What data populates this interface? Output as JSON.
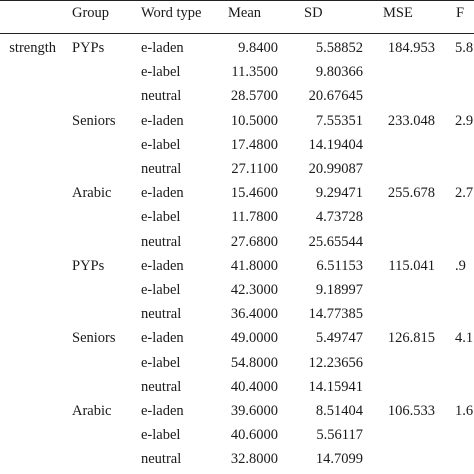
{
  "table": {
    "headers": {
      "col_group": "Group",
      "col_word_type": "Word type",
      "col_mean": "Mean",
      "col_sd": "SD",
      "col_mse": "MSE",
      "col_f": "F"
    },
    "measure_label": "strength",
    "rows": [
      {
        "group": "PYPs",
        "word_type": "e-laden",
        "mean": "9.8400",
        "sd": "5.58852",
        "mse": "184.953",
        "f": "5.8"
      },
      {
        "group": "",
        "word_type": "e-label",
        "mean": "11.3500",
        "sd": "9.80366",
        "mse": "",
        "f": ""
      },
      {
        "group": "",
        "word_type": "neutral",
        "mean": "28.5700",
        "sd": "20.67645",
        "mse": "",
        "f": ""
      },
      {
        "group": "Seniors",
        "word_type": "e-laden",
        "mean": "10.5000",
        "sd": "7.55351",
        "mse": "233.048",
        "f": "2.9"
      },
      {
        "group": "",
        "word_type": "e-label",
        "mean": "17.4800",
        "sd": "14.19404",
        "mse": "",
        "f": ""
      },
      {
        "group": "",
        "word_type": "neutral",
        "mean": "27.1100",
        "sd": "20.99087",
        "mse": "",
        "f": ""
      },
      {
        "group": "Arabic",
        "word_type": "e-laden",
        "mean": "15.4600",
        "sd": "9.29471",
        "mse": "255.678",
        "f": "2.7"
      },
      {
        "group": "",
        "word_type": "e-label",
        "mean": "11.7800",
        "sd": "4.73728",
        "mse": "",
        "f": ""
      },
      {
        "group": "",
        "word_type": "neutral",
        "mean": "27.6800",
        "sd": "25.65544",
        "mse": "",
        "f": ""
      },
      {
        "group": "PYPs",
        "word_type": "e-laden",
        "mean": "41.8000",
        "sd": "6.51153",
        "mse": "115.041",
        "f": ".9"
      },
      {
        "group": "",
        "word_type": "e-label",
        "mean": "42.3000",
        "sd": "9.18997",
        "mse": "",
        "f": ""
      },
      {
        "group": "",
        "word_type": "neutral",
        "mean": "36.4000",
        "sd": "14.77385",
        "mse": "",
        "f": ""
      },
      {
        "group": "Seniors",
        "word_type": "e-laden",
        "mean": "49.0000",
        "sd": "5.49747",
        "mse": "126.815",
        "f": "4.1"
      },
      {
        "group": "",
        "word_type": "e-label",
        "mean": "54.8000",
        "sd": "12.23656",
        "mse": "",
        "f": ""
      },
      {
        "group": "",
        "word_type": "neutral",
        "mean": "40.4000",
        "sd": "14.15941",
        "mse": "",
        "f": ""
      },
      {
        "group": "Arabic",
        "word_type": "e-laden",
        "mean": "39.6000",
        "sd": "8.51404",
        "mse": "106.533",
        "f": "1.6"
      },
      {
        "group": "",
        "word_type": "e-label",
        "mean": "40.6000",
        "sd": "5.56117",
        "mse": "",
        "f": ""
      },
      {
        "group": "",
        "word_type": "neutral",
        "mean": "32.8000",
        "sd": "14.7099",
        "mse": "",
        "f": ""
      }
    ]
  }
}
